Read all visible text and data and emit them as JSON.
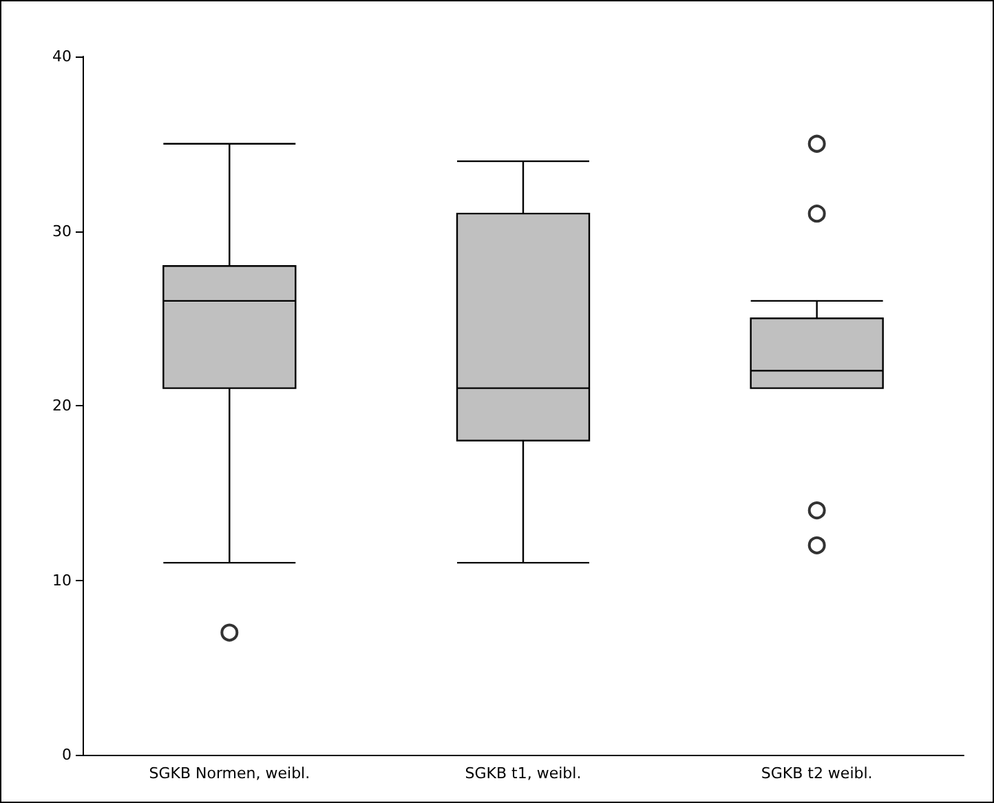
{
  "chart_data": {
    "type": "box",
    "categories": [
      "SGKB Normen, weibl.",
      "SGKB t1, weibl.",
      "SGKB t2 weibl."
    ],
    "ylim": [
      0,
      40
    ],
    "yticks": [
      0,
      10,
      20,
      30,
      40
    ],
    "series": [
      {
        "color": "#c0c0c0",
        "boxes": [
          {
            "low": 11,
            "q1": 21,
            "median": 26,
            "q3": 28,
            "high": 35,
            "outliers": [
              7
            ]
          },
          {
            "low": 11,
            "q1": 18,
            "median": 21,
            "q3": 31,
            "high": 34
          },
          {
            "low": 21,
            "q1": 21,
            "median": 22,
            "q3": 25,
            "high": 26,
            "outliers": [
              35,
              31,
              14,
              12
            ]
          }
        ]
      }
    ]
  }
}
